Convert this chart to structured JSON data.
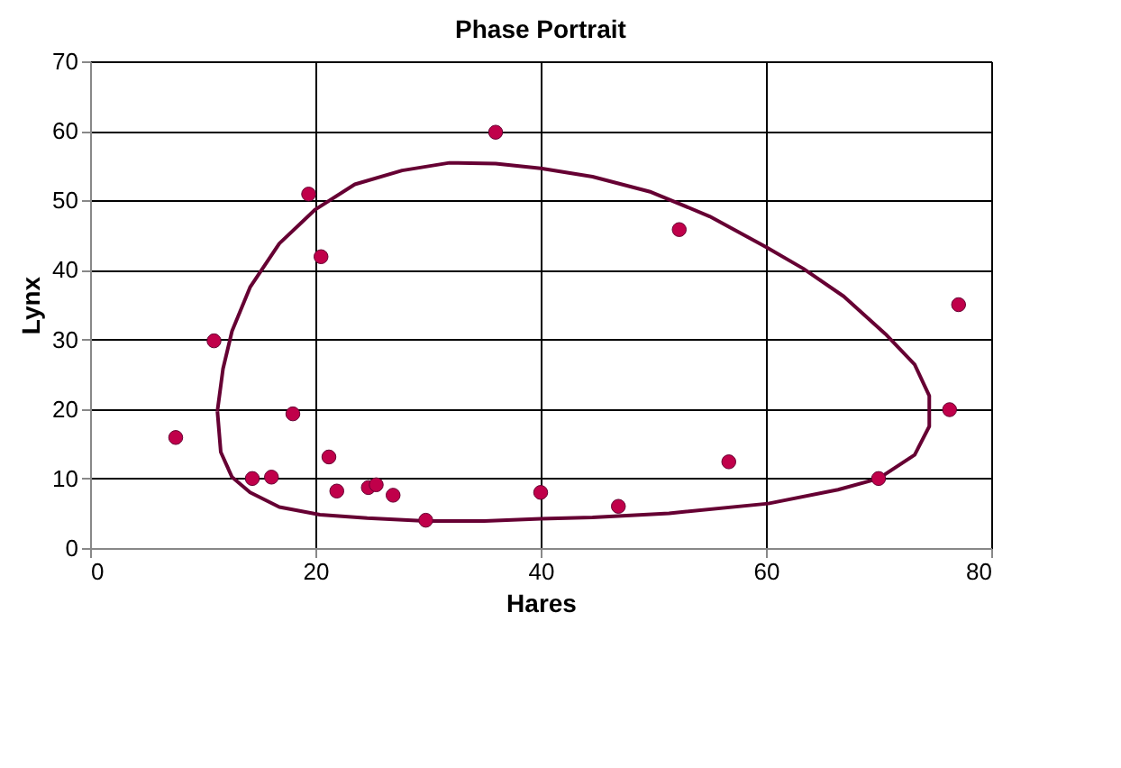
{
  "chart_data": {
    "type": "scatter",
    "title": "Phase Portrait",
    "xlabel": "Hares",
    "ylabel": "Lynx",
    "xlim": [
      0,
      80
    ],
    "xticks": [
      0,
      20,
      40,
      60,
      80
    ],
    "ylim": [
      0,
      70
    ],
    "yticks": [
      0,
      10,
      20,
      30,
      40,
      50,
      60,
      70
    ],
    "grid": true,
    "series": [
      {
        "marker": "circle",
        "color": "#c0004a",
        "x": [
          36.0,
          19.4,
          20.5,
          11.0,
          7.6,
          18.0,
          21.2,
          14.4,
          16.1,
          21.9,
          24.7,
          25.4,
          26.9,
          29.8,
          40.0,
          52.3,
          46.9,
          56.7,
          70.0,
          77.1,
          76.3
        ],
        "values": [
          59.8,
          50.9,
          41.9,
          29.8,
          15.9,
          19.3,
          13.1,
          10.0,
          10.2,
          8.2,
          8.7,
          9.1,
          7.6,
          4.0,
          8.0,
          45.8,
          6.0,
          12.4,
          10.0,
          35.0,
          19.9
        ]
      }
    ]
  }
}
